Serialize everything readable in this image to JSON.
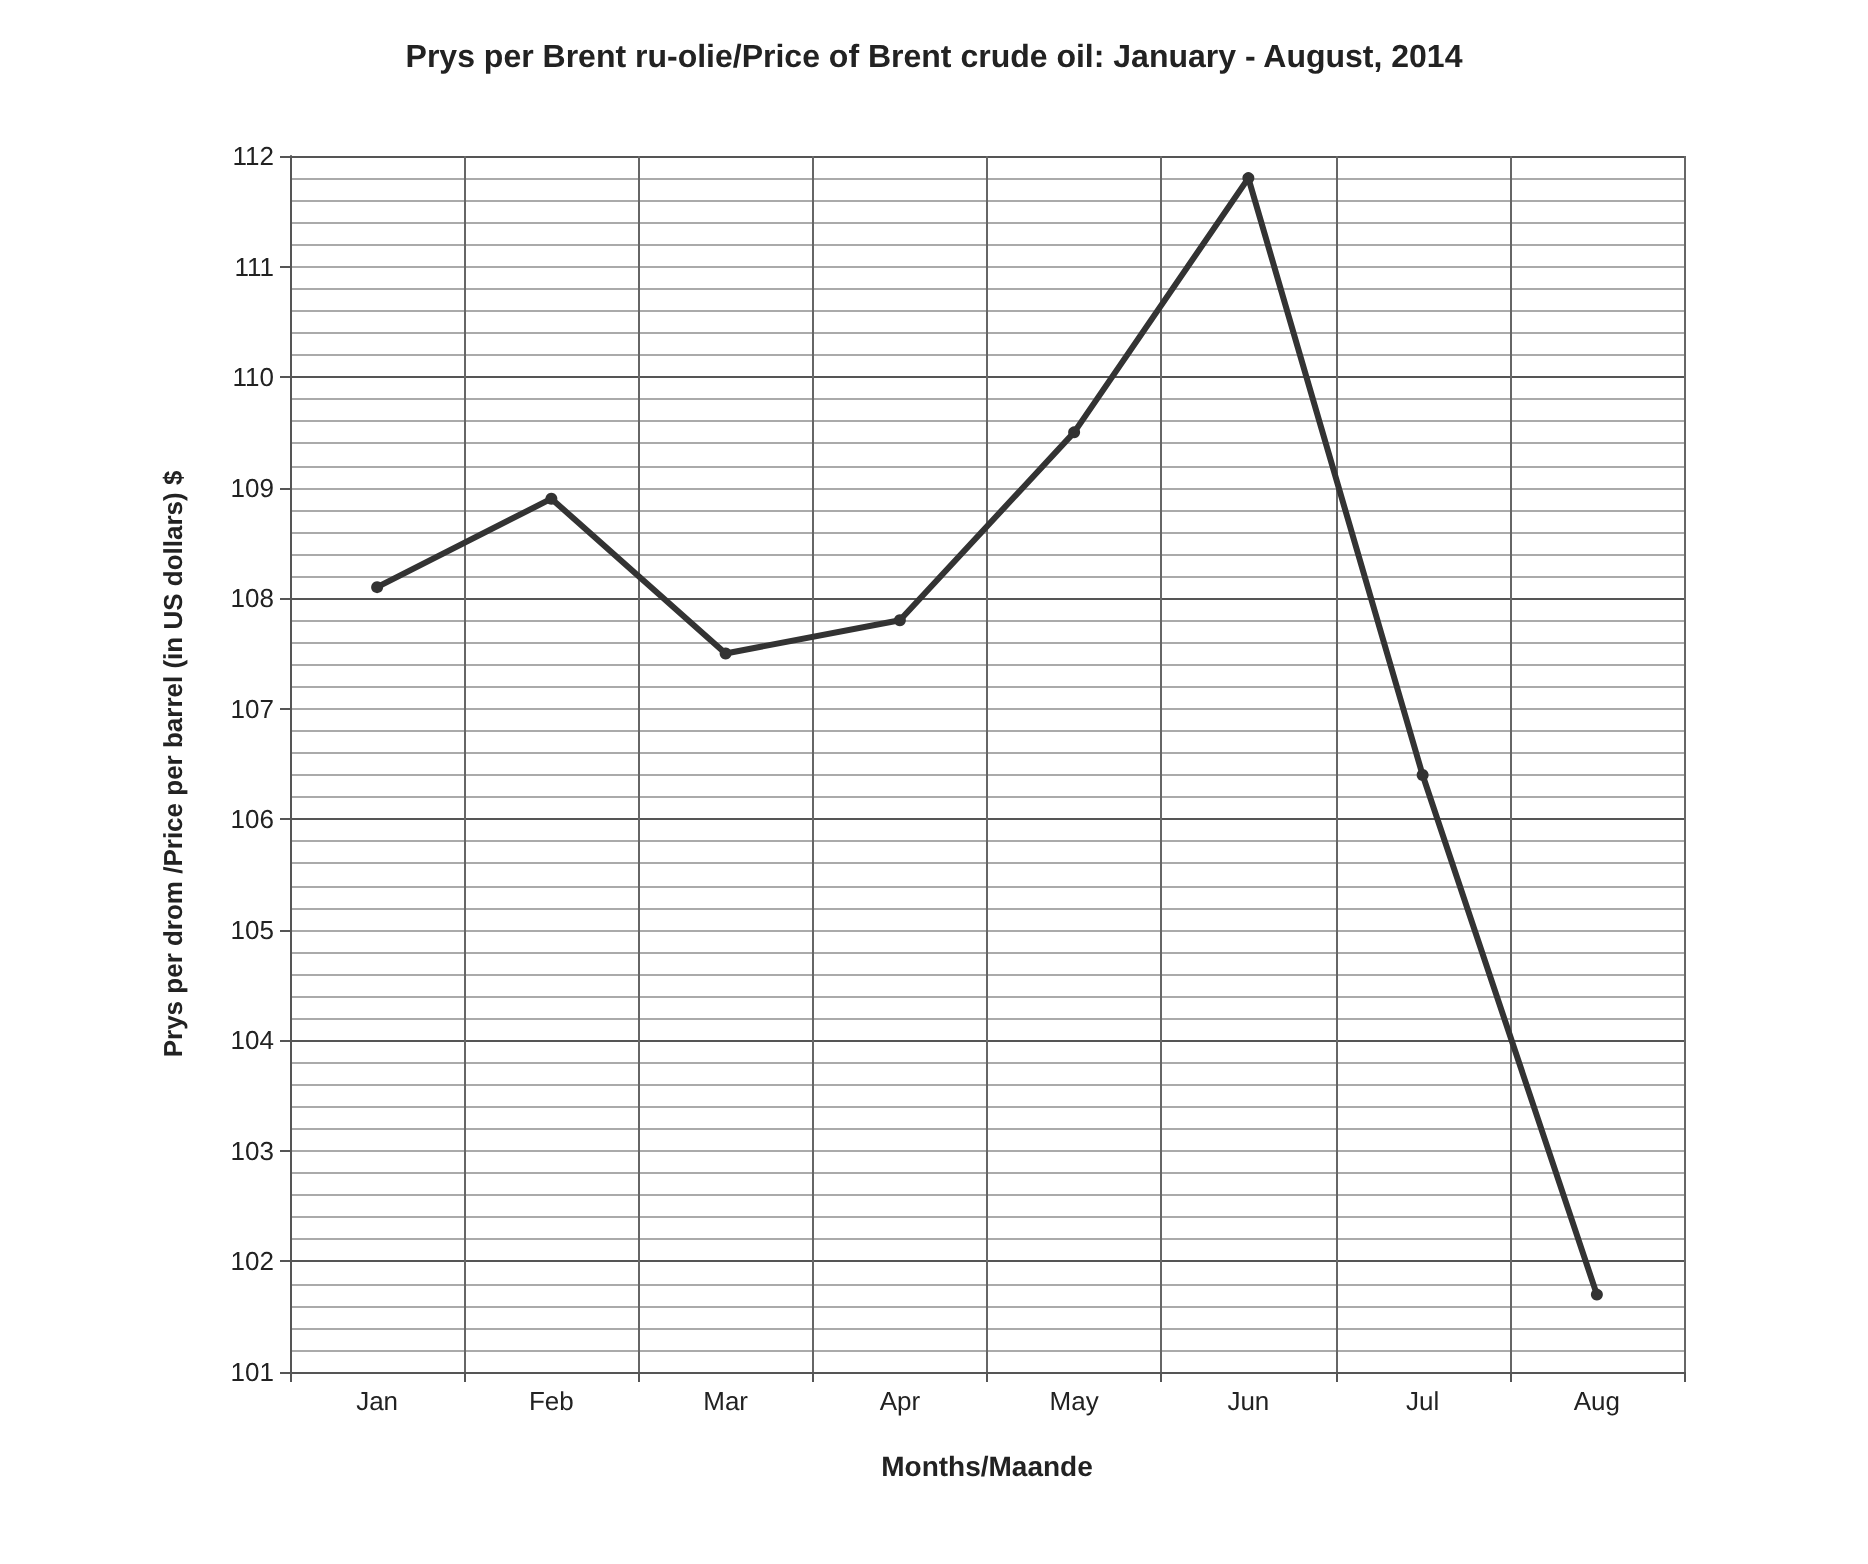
{
  "chart_data": {
    "type": "line",
    "title": "Prys per Brent ru-olie/Price of Brent crude oil: January - August, 2014",
    "xlabel": "Months/Maande",
    "ylabel": "Prys per drom /Price per barrel (in US dollars) $",
    "categories": [
      "Jan",
      "Feb",
      "Mar",
      "Apr",
      "May",
      "Jun",
      "Jul",
      "Aug"
    ],
    "series": [
      {
        "color": "#333333",
        "values": [
          108.1,
          108.9,
          107.5,
          107.8,
          109.5,
          111.8,
          106.4,
          101.7
        ]
      }
    ],
    "ylim": [
      101,
      112
    ],
    "yticks": [
      101,
      102,
      103,
      104,
      105,
      106,
      107,
      108,
      109,
      110,
      111,
      112
    ],
    "grid": true,
    "marker": "circle",
    "line_style": "solid"
  }
}
